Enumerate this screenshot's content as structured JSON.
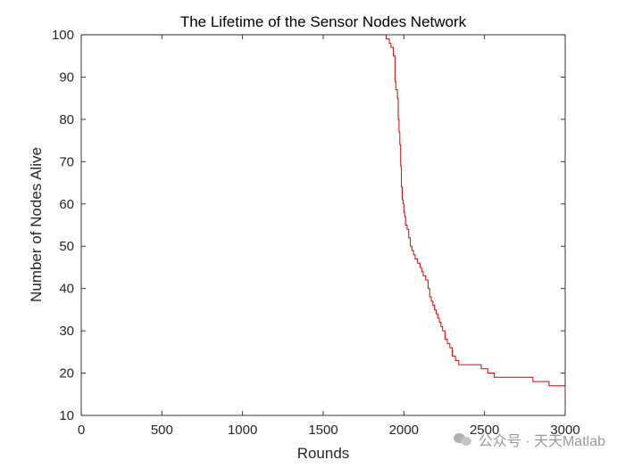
{
  "chart_data": {
    "type": "line",
    "title": "The Lifetime of the Sensor Nodes Network",
    "xlabel": "Rounds",
    "ylabel": "Number of Nodes Alive",
    "xlim": [
      0,
      3000
    ],
    "ylim": [
      10,
      100
    ],
    "xticks": [
      0,
      500,
      1000,
      1500,
      2000,
      2500,
      3000
    ],
    "yticks": [
      10,
      20,
      30,
      40,
      50,
      60,
      70,
      80,
      90,
      100
    ],
    "grid": false,
    "line_color": "#e00000",
    "series": [
      {
        "step": "post",
        "x": [
          0,
          1890,
          1910,
          1920,
          1935,
          1945,
          1950,
          1960,
          1965,
          1970,
          1975,
          1980,
          1985,
          1990,
          1995,
          2000,
          2005,
          2010,
          2020,
          2030,
          2040,
          2050,
          2060,
          2070,
          2085,
          2100,
          2110,
          2120,
          2135,
          2150,
          2160,
          2170,
          2180,
          2190,
          2200,
          2210,
          2220,
          2230,
          2240,
          2255,
          2270,
          2285,
          2300,
          2320,
          2340,
          2360,
          2380,
          2420,
          2480,
          2520,
          2560,
          2600,
          2700,
          2800,
          2880,
          2900,
          2950,
          3000
        ],
        "y": [
          100,
          99,
          98,
          97,
          95,
          89,
          87,
          85,
          80,
          77,
          74,
          69,
          64,
          61,
          60,
          58,
          57,
          55,
          54,
          52,
          50,
          49,
          48,
          47,
          46,
          45,
          44,
          43,
          42,
          40,
          38,
          37,
          36,
          35,
          34,
          33,
          32,
          31,
          30,
          28,
          27,
          26,
          24,
          23,
          22,
          22,
          22,
          22,
          21,
          20,
          19,
          19,
          19,
          18,
          18,
          17,
          17,
          17
        ]
      }
    ]
  },
  "watermark": {
    "text": "公众号 · 天天Matlab",
    "icon": "wechat-icon"
  }
}
